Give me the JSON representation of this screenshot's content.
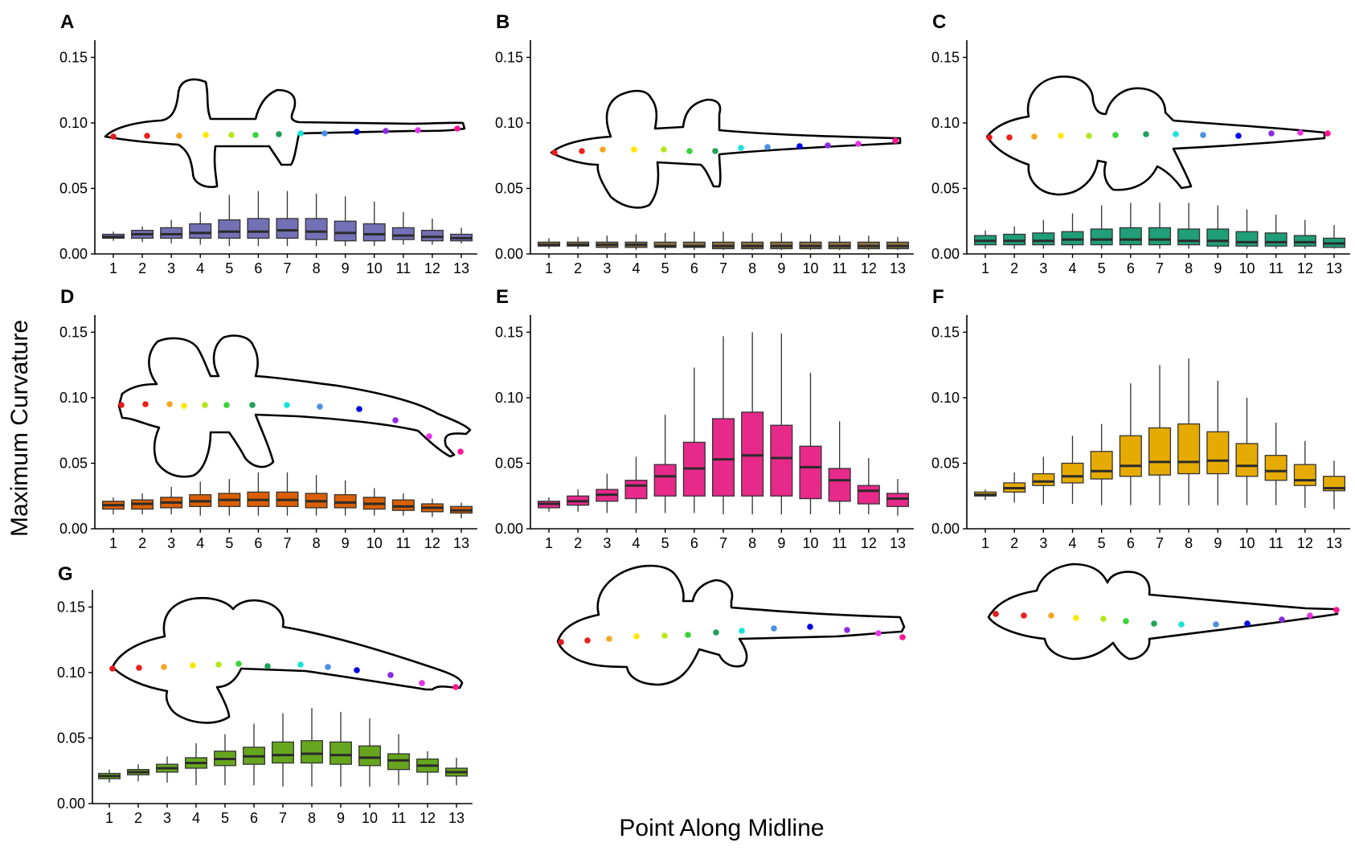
{
  "figure": {
    "ylabel": "Maximum Curvature",
    "xlabel": "Point Along Midline"
  },
  "point_colors": [
    "#e41a1c",
    "#e8221a",
    "#f5a623",
    "#ffe600",
    "#b5e61d",
    "#39d33a",
    "#1fa15a",
    "#19e3d6",
    "#4a90e2",
    "#0000e6",
    "#8a2be2",
    "#e633e6",
    "#ff1493"
  ],
  "chart_data": [
    {
      "type": "boxplot",
      "panel": "A",
      "color": "#7470b5",
      "categories": [
        "1",
        "2",
        "3",
        "4",
        "5",
        "6",
        "7",
        "8",
        "9",
        "10",
        "11",
        "12",
        "13"
      ],
      "yticks": [
        "0.00",
        "0.05",
        "0.10",
        "0.15"
      ],
      "ylim": [
        0,
        0.157
      ],
      "shape": "shark",
      "boxes": [
        {
          "x": "1",
          "min": 0.01,
          "q1": 0.012,
          "median": 0.013,
          "q3": 0.015,
          "max": 0.017
        },
        {
          "x": "2",
          "min": 0.009,
          "q1": 0.012,
          "median": 0.015,
          "q3": 0.018,
          "max": 0.021
        },
        {
          "x": "3",
          "min": 0.008,
          "q1": 0.012,
          "median": 0.015,
          "q3": 0.02,
          "max": 0.026
        },
        {
          "x": "4",
          "min": 0.007,
          "q1": 0.012,
          "median": 0.016,
          "q3": 0.023,
          "max": 0.032
        },
        {
          "x": "5",
          "min": 0.006,
          "q1": 0.012,
          "median": 0.017,
          "q3": 0.026,
          "max": 0.045
        },
        {
          "x": "6",
          "min": 0.006,
          "q1": 0.012,
          "median": 0.017,
          "q3": 0.027,
          "max": 0.048
        },
        {
          "x": "7",
          "min": 0.006,
          "q1": 0.012,
          "median": 0.018,
          "q3": 0.027,
          "max": 0.048
        },
        {
          "x": "8",
          "min": 0.006,
          "q1": 0.011,
          "median": 0.017,
          "q3": 0.027,
          "max": 0.046
        },
        {
          "x": "9",
          "min": 0.006,
          "q1": 0.01,
          "median": 0.016,
          "q3": 0.025,
          "max": 0.044
        },
        {
          "x": "10",
          "min": 0.006,
          "q1": 0.01,
          "median": 0.015,
          "q3": 0.023,
          "max": 0.04
        },
        {
          "x": "11",
          "min": 0.007,
          "q1": 0.011,
          "median": 0.014,
          "q3": 0.02,
          "max": 0.032
        },
        {
          "x": "12",
          "min": 0.007,
          "q1": 0.01,
          "median": 0.013,
          "q3": 0.018,
          "max": 0.027
        },
        {
          "x": "13",
          "min": 0.008,
          "q1": 0.01,
          "median": 0.012,
          "q3": 0.015,
          "max": 0.02
        }
      ]
    },
    {
      "type": "boxplot",
      "panel": "B",
      "color": "#8a7040",
      "categories": [
        "1",
        "2",
        "3",
        "4",
        "5",
        "6",
        "7",
        "8",
        "9",
        "10",
        "11",
        "12",
        "13"
      ],
      "yticks": [
        "0.00",
        "0.05",
        "0.10",
        "0.15"
      ],
      "ylim": [
        0,
        0.157
      ],
      "shape": "ray",
      "boxes": [
        {
          "x": "1",
          "min": 0.004,
          "q1": 0.006,
          "median": 0.007,
          "q3": 0.009,
          "max": 0.012
        },
        {
          "x": "2",
          "min": 0.004,
          "q1": 0.006,
          "median": 0.007,
          "q3": 0.009,
          "max": 0.013
        },
        {
          "x": "3",
          "min": 0.004,
          "q1": 0.005,
          "median": 0.007,
          "q3": 0.009,
          "max": 0.014
        },
        {
          "x": "4",
          "min": 0.003,
          "q1": 0.005,
          "median": 0.007,
          "q3": 0.009,
          "max": 0.015
        },
        {
          "x": "5",
          "min": 0.003,
          "q1": 0.005,
          "median": 0.006,
          "q3": 0.009,
          "max": 0.016
        },
        {
          "x": "6",
          "min": 0.003,
          "q1": 0.005,
          "median": 0.006,
          "q3": 0.009,
          "max": 0.017
        },
        {
          "x": "7",
          "min": 0.003,
          "q1": 0.004,
          "median": 0.006,
          "q3": 0.009,
          "max": 0.017
        },
        {
          "x": "8",
          "min": 0.003,
          "q1": 0.004,
          "median": 0.006,
          "q3": 0.009,
          "max": 0.016
        },
        {
          "x": "9",
          "min": 0.003,
          "q1": 0.004,
          "median": 0.006,
          "q3": 0.009,
          "max": 0.016
        },
        {
          "x": "10",
          "min": 0.003,
          "q1": 0.004,
          "median": 0.006,
          "q3": 0.009,
          "max": 0.015
        },
        {
          "x": "11",
          "min": 0.003,
          "q1": 0.004,
          "median": 0.006,
          "q3": 0.009,
          "max": 0.014
        },
        {
          "x": "12",
          "min": 0.003,
          "q1": 0.004,
          "median": 0.006,
          "q3": 0.009,
          "max": 0.014
        },
        {
          "x": "13",
          "min": 0.003,
          "q1": 0.004,
          "median": 0.006,
          "q3": 0.009,
          "max": 0.013
        }
      ]
    },
    {
      "type": "boxplot",
      "panel": "C",
      "color": "#1f9e77",
      "categories": [
        "1",
        "2",
        "3",
        "4",
        "5",
        "6",
        "7",
        "8",
        "9",
        "10",
        "11",
        "12",
        "13"
      ],
      "yticks": [
        "0.00",
        "0.05",
        "0.10",
        "0.15"
      ],
      "ylim": [
        0,
        0.157
      ],
      "shape": "ray2",
      "boxes": [
        {
          "x": "1",
          "min": 0.004,
          "q1": 0.007,
          "median": 0.01,
          "q3": 0.014,
          "max": 0.018
        },
        {
          "x": "2",
          "min": 0.004,
          "q1": 0.007,
          "median": 0.01,
          "q3": 0.015,
          "max": 0.021
        },
        {
          "x": "3",
          "min": 0.004,
          "q1": 0.007,
          "median": 0.01,
          "q3": 0.016,
          "max": 0.026
        },
        {
          "x": "4",
          "min": 0.004,
          "q1": 0.007,
          "median": 0.011,
          "q3": 0.017,
          "max": 0.031
        },
        {
          "x": "5",
          "min": 0.004,
          "q1": 0.007,
          "median": 0.011,
          "q3": 0.019,
          "max": 0.037
        },
        {
          "x": "6",
          "min": 0.004,
          "q1": 0.007,
          "median": 0.011,
          "q3": 0.02,
          "max": 0.039
        },
        {
          "x": "7",
          "min": 0.004,
          "q1": 0.007,
          "median": 0.011,
          "q3": 0.02,
          "max": 0.039
        },
        {
          "x": "8",
          "min": 0.004,
          "q1": 0.007,
          "median": 0.01,
          "q3": 0.019,
          "max": 0.039
        },
        {
          "x": "9",
          "min": 0.004,
          "q1": 0.006,
          "median": 0.01,
          "q3": 0.019,
          "max": 0.037
        },
        {
          "x": "10",
          "min": 0.004,
          "q1": 0.006,
          "median": 0.009,
          "q3": 0.017,
          "max": 0.034
        },
        {
          "x": "11",
          "min": 0.004,
          "q1": 0.006,
          "median": 0.009,
          "q3": 0.016,
          "max": 0.03
        },
        {
          "x": "12",
          "min": 0.004,
          "q1": 0.006,
          "median": 0.009,
          "q3": 0.014,
          "max": 0.026
        },
        {
          "x": "13",
          "min": 0.004,
          "q1": 0.005,
          "median": 0.008,
          "q3": 0.012,
          "max": 0.022
        }
      ]
    },
    {
      "type": "boxplot",
      "panel": "D",
      "color": "#d95f02",
      "categories": [
        "1",
        "2",
        "3",
        "4",
        "5",
        "6",
        "7",
        "8",
        "9",
        "10",
        "11",
        "12",
        "13"
      ],
      "yticks": [
        "0.00",
        "0.05",
        "0.10",
        "0.15"
      ],
      "ylim": [
        0,
        0.157
      ],
      "shape": "ray3",
      "boxes": [
        {
          "x": "1",
          "min": 0.011,
          "q1": 0.015,
          "median": 0.018,
          "q3": 0.021,
          "max": 0.024
        },
        {
          "x": "2",
          "min": 0.011,
          "q1": 0.015,
          "median": 0.019,
          "q3": 0.022,
          "max": 0.027
        },
        {
          "x": "3",
          "min": 0.011,
          "q1": 0.016,
          "median": 0.02,
          "q3": 0.024,
          "max": 0.032
        },
        {
          "x": "4",
          "min": 0.01,
          "q1": 0.017,
          "median": 0.021,
          "q3": 0.026,
          "max": 0.036
        },
        {
          "x": "5",
          "min": 0.01,
          "q1": 0.017,
          "median": 0.022,
          "q3": 0.027,
          "max": 0.038
        },
        {
          "x": "6",
          "min": 0.01,
          "q1": 0.017,
          "median": 0.022,
          "q3": 0.028,
          "max": 0.043
        },
        {
          "x": "7",
          "min": 0.01,
          "q1": 0.017,
          "median": 0.022,
          "q3": 0.028,
          "max": 0.043
        },
        {
          "x": "8",
          "min": 0.01,
          "q1": 0.016,
          "median": 0.021,
          "q3": 0.027,
          "max": 0.041
        },
        {
          "x": "9",
          "min": 0.01,
          "q1": 0.016,
          "median": 0.02,
          "q3": 0.026,
          "max": 0.037
        },
        {
          "x": "10",
          "min": 0.01,
          "q1": 0.015,
          "median": 0.019,
          "q3": 0.024,
          "max": 0.031
        },
        {
          "x": "11",
          "min": 0.01,
          "q1": 0.014,
          "median": 0.017,
          "q3": 0.022,
          "max": 0.027
        },
        {
          "x": "12",
          "min": 0.009,
          "q1": 0.013,
          "median": 0.016,
          "q3": 0.019,
          "max": 0.023
        },
        {
          "x": "13",
          "min": 0.008,
          "q1": 0.012,
          "median": 0.014,
          "q3": 0.017,
          "max": 0.02
        }
      ]
    },
    {
      "type": "boxplot",
      "panel": "E",
      "color": "#e7298a",
      "categories": [
        "1",
        "2",
        "3",
        "4",
        "5",
        "6",
        "7",
        "8",
        "9",
        "10",
        "11",
        "12",
        "13"
      ],
      "yticks": [
        "0.00",
        "0.05",
        "0.10",
        "0.15"
      ],
      "ylim": [
        0,
        0.157
      ],
      "shape": "ray4",
      "boxes": [
        {
          "x": "1",
          "min": 0.013,
          "q1": 0.016,
          "median": 0.019,
          "q3": 0.021,
          "max": 0.024
        },
        {
          "x": "2",
          "min": 0.013,
          "q1": 0.018,
          "median": 0.021,
          "q3": 0.025,
          "max": 0.03
        },
        {
          "x": "3",
          "min": 0.012,
          "q1": 0.021,
          "median": 0.026,
          "q3": 0.03,
          "max": 0.042
        },
        {
          "x": "4",
          "min": 0.012,
          "q1": 0.023,
          "median": 0.033,
          "q3": 0.037,
          "max": 0.055
        },
        {
          "x": "5",
          "min": 0.012,
          "q1": 0.025,
          "median": 0.04,
          "q3": 0.049,
          "max": 0.087
        },
        {
          "x": "6",
          "min": 0.012,
          "q1": 0.025,
          "median": 0.046,
          "q3": 0.066,
          "max": 0.123
        },
        {
          "x": "7",
          "min": 0.011,
          "q1": 0.025,
          "median": 0.053,
          "q3": 0.084,
          "max": 0.147
        },
        {
          "x": "8",
          "min": 0.011,
          "q1": 0.025,
          "median": 0.056,
          "q3": 0.089,
          "max": 0.15
        },
        {
          "x": "9",
          "min": 0.011,
          "q1": 0.025,
          "median": 0.054,
          "q3": 0.079,
          "max": 0.149
        },
        {
          "x": "10",
          "min": 0.011,
          "q1": 0.023,
          "median": 0.047,
          "q3": 0.063,
          "max": 0.119
        },
        {
          "x": "11",
          "min": 0.011,
          "q1": 0.021,
          "median": 0.037,
          "q3": 0.046,
          "max": 0.082
        },
        {
          "x": "12",
          "min": 0.011,
          "q1": 0.019,
          "median": 0.029,
          "q3": 0.033,
          "max": 0.054
        },
        {
          "x": "13",
          "min": 0.01,
          "q1": 0.017,
          "median": 0.023,
          "q3": 0.027,
          "max": 0.038
        }
      ]
    },
    {
      "type": "boxplot",
      "panel": "F",
      "color": "#e6ab02",
      "categories": [
        "1",
        "2",
        "3",
        "4",
        "5",
        "6",
        "7",
        "8",
        "9",
        "10",
        "11",
        "12",
        "13"
      ],
      "yticks": [
        "0.00",
        "0.05",
        "0.10",
        "0.15"
      ],
      "ylim": [
        0,
        0.157
      ],
      "shape": "ray5",
      "boxes": [
        {
          "x": "1",
          "min": 0.022,
          "q1": 0.025,
          "median": 0.026,
          "q3": 0.028,
          "max": 0.03
        },
        {
          "x": "2",
          "min": 0.02,
          "q1": 0.028,
          "median": 0.031,
          "q3": 0.035,
          "max": 0.043
        },
        {
          "x": "3",
          "min": 0.019,
          "q1": 0.033,
          "median": 0.036,
          "q3": 0.042,
          "max": 0.055
        },
        {
          "x": "4",
          "min": 0.019,
          "q1": 0.035,
          "median": 0.04,
          "q3": 0.05,
          "max": 0.071
        },
        {
          "x": "5",
          "min": 0.018,
          "q1": 0.038,
          "median": 0.044,
          "q3": 0.059,
          "max": 0.08
        },
        {
          "x": "6",
          "min": 0.018,
          "q1": 0.04,
          "median": 0.048,
          "q3": 0.071,
          "max": 0.111
        },
        {
          "x": "7",
          "min": 0.018,
          "q1": 0.041,
          "median": 0.051,
          "q3": 0.077,
          "max": 0.125
        },
        {
          "x": "8",
          "min": 0.018,
          "q1": 0.042,
          "median": 0.051,
          "q3": 0.08,
          "max": 0.13
        },
        {
          "x": "9",
          "min": 0.018,
          "q1": 0.042,
          "median": 0.052,
          "q3": 0.074,
          "max": 0.113
        },
        {
          "x": "10",
          "min": 0.018,
          "q1": 0.04,
          "median": 0.048,
          "q3": 0.065,
          "max": 0.1
        },
        {
          "x": "11",
          "min": 0.018,
          "q1": 0.037,
          "median": 0.044,
          "q3": 0.056,
          "max": 0.081
        },
        {
          "x": "12",
          "min": 0.016,
          "q1": 0.033,
          "median": 0.037,
          "q3": 0.049,
          "max": 0.067
        },
        {
          "x": "13",
          "min": 0.015,
          "q1": 0.029,
          "median": 0.031,
          "q3": 0.04,
          "max": 0.052
        }
      ]
    },
    {
      "type": "boxplot",
      "panel": "G",
      "color": "#66a61e",
      "categories": [
        "1",
        "2",
        "3",
        "4",
        "5",
        "6",
        "7",
        "8",
        "9",
        "10",
        "11",
        "12",
        "13"
      ],
      "yticks": [
        "0.00",
        "0.05",
        "0.10",
        "0.15"
      ],
      "ylim": [
        0,
        0.157
      ],
      "shape": "ray6",
      "boxes": [
        {
          "x": "1",
          "min": 0.016,
          "q1": 0.019,
          "median": 0.021,
          "q3": 0.023,
          "max": 0.026
        },
        {
          "x": "2",
          "min": 0.017,
          "q1": 0.022,
          "median": 0.024,
          "q3": 0.026,
          "max": 0.03
        },
        {
          "x": "3",
          "min": 0.016,
          "q1": 0.024,
          "median": 0.027,
          "q3": 0.03,
          "max": 0.036
        },
        {
          "x": "4",
          "min": 0.014,
          "q1": 0.027,
          "median": 0.031,
          "q3": 0.035,
          "max": 0.046
        },
        {
          "x": "5",
          "min": 0.014,
          "q1": 0.029,
          "median": 0.034,
          "q3": 0.04,
          "max": 0.053
        },
        {
          "x": "6",
          "min": 0.014,
          "q1": 0.03,
          "median": 0.036,
          "q3": 0.043,
          "max": 0.061
        },
        {
          "x": "7",
          "min": 0.013,
          "q1": 0.031,
          "median": 0.037,
          "q3": 0.047,
          "max": 0.069
        },
        {
          "x": "8",
          "min": 0.013,
          "q1": 0.031,
          "median": 0.038,
          "q3": 0.048,
          "max": 0.073
        },
        {
          "x": "9",
          "min": 0.013,
          "q1": 0.03,
          "median": 0.037,
          "q3": 0.047,
          "max": 0.07
        },
        {
          "x": "10",
          "min": 0.013,
          "q1": 0.029,
          "median": 0.035,
          "q3": 0.044,
          "max": 0.065
        },
        {
          "x": "11",
          "min": 0.014,
          "q1": 0.026,
          "median": 0.033,
          "q3": 0.038,
          "max": 0.053
        },
        {
          "x": "12",
          "min": 0.014,
          "q1": 0.024,
          "median": 0.029,
          "q3": 0.034,
          "max": 0.04
        },
        {
          "x": "13",
          "min": 0.014,
          "q1": 0.021,
          "median": 0.024,
          "q3": 0.027,
          "max": 0.035
        }
      ]
    }
  ]
}
